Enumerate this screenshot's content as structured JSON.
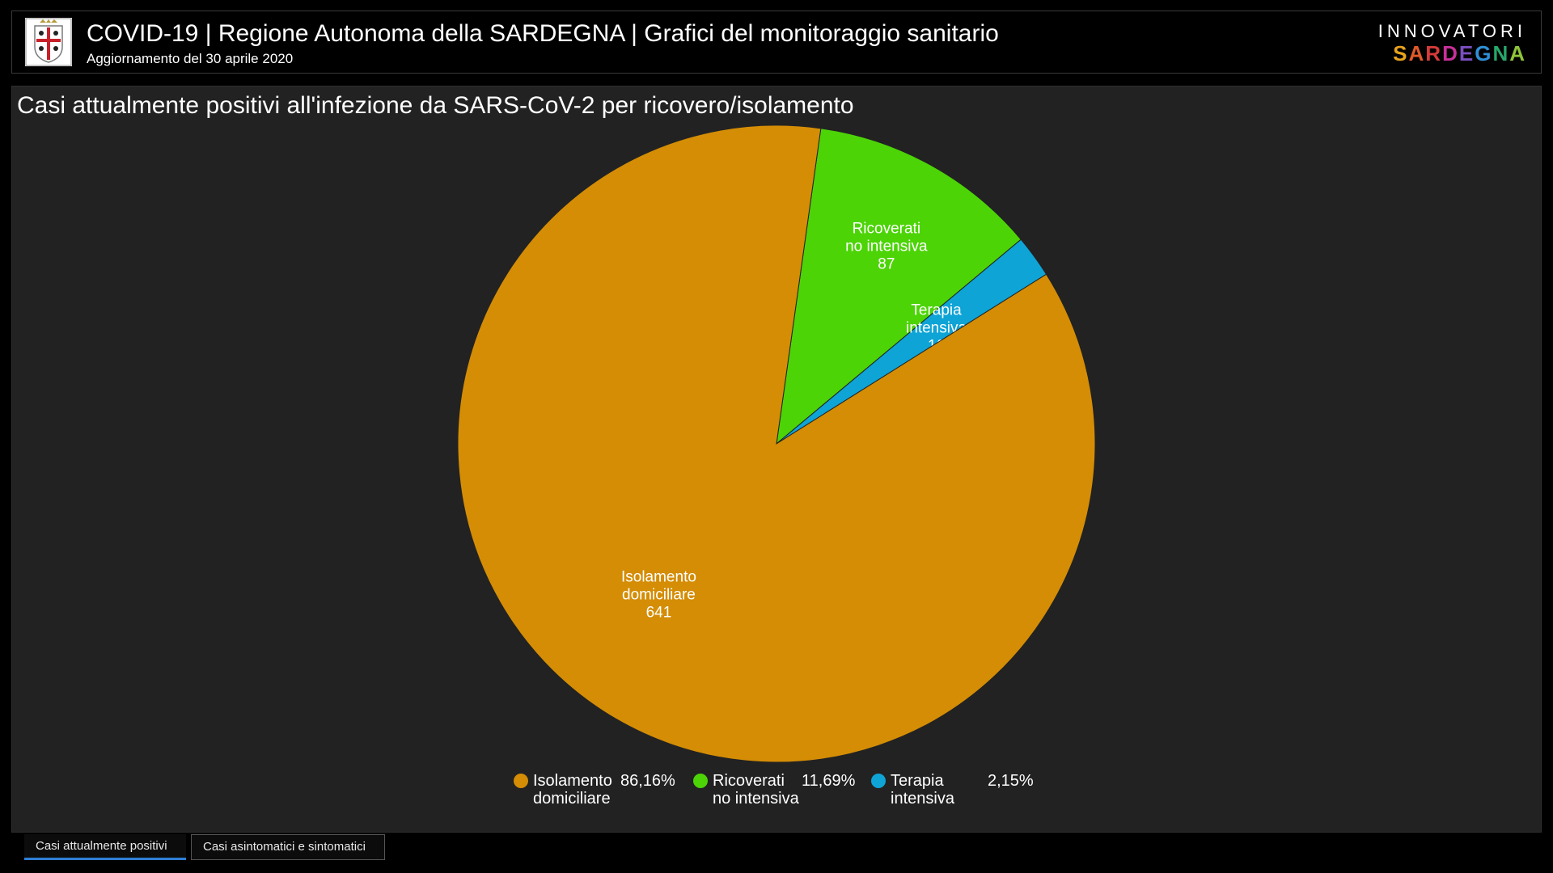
{
  "header": {
    "title": "COVID-19 | Regione Autonoma della SARDEGNA | Grafici del monitoraggio sanitario",
    "subtitle": "Aggiornamento del 30 aprile 2020",
    "brand_top": "INNOVATORI",
    "brand_bottom_letters": [
      "S",
      "A",
      "R",
      "D",
      "E",
      "G",
      "N",
      "A"
    ],
    "brand_bottom_colors": [
      "#e8a21d",
      "#e05a2a",
      "#d63a3a",
      "#c8309a",
      "#7a4fc0",
      "#2f8fd6",
      "#26a86b",
      "#8fc43a"
    ],
    "logo_icon": "sardinia-coat-of-arms-icon"
  },
  "panel": {
    "title": "Casi attualmente positivi all'infezione da SARS-CoV-2 per ricovero/isolamento"
  },
  "chart_data": {
    "type": "pie",
    "start_angle_deg": 8,
    "categories": [
      "Isolamento domiciliare",
      "Ricoverati no intensiva",
      "Terapia intensiva"
    ],
    "values": [
      641,
      87,
      16
    ],
    "percentages": [
      "86,16%",
      "11,69%",
      "2,15%"
    ],
    "colors": [
      "#d48d05",
      "#4cd407",
      "#0ea4d6"
    ],
    "slice_labels": [
      {
        "lines": [
          "Isolamento",
          "domiciliare",
          "641"
        ]
      },
      {
        "lines": [
          "Ricoverati",
          "no intensiva",
          "87"
        ]
      },
      {
        "lines": [
          "Terapia",
          "intensiva",
          "16"
        ]
      }
    ],
    "legend": [
      {
        "lines": [
          "Isolamento",
          "domiciliare"
        ],
        "pct": "86,16%"
      },
      {
        "lines": [
          "Ricoverati",
          "no intensiva"
        ],
        "pct": "11,69%"
      },
      {
        "lines": [
          "Terapia",
          "intensiva"
        ],
        "pct": "2,15%"
      }
    ],
    "legend_position": "bottom"
  },
  "tabs": [
    {
      "label": "Casi attualmente positivi",
      "active": true
    },
    {
      "label": "Casi asintomatici e sintomatici",
      "active": false
    }
  ]
}
